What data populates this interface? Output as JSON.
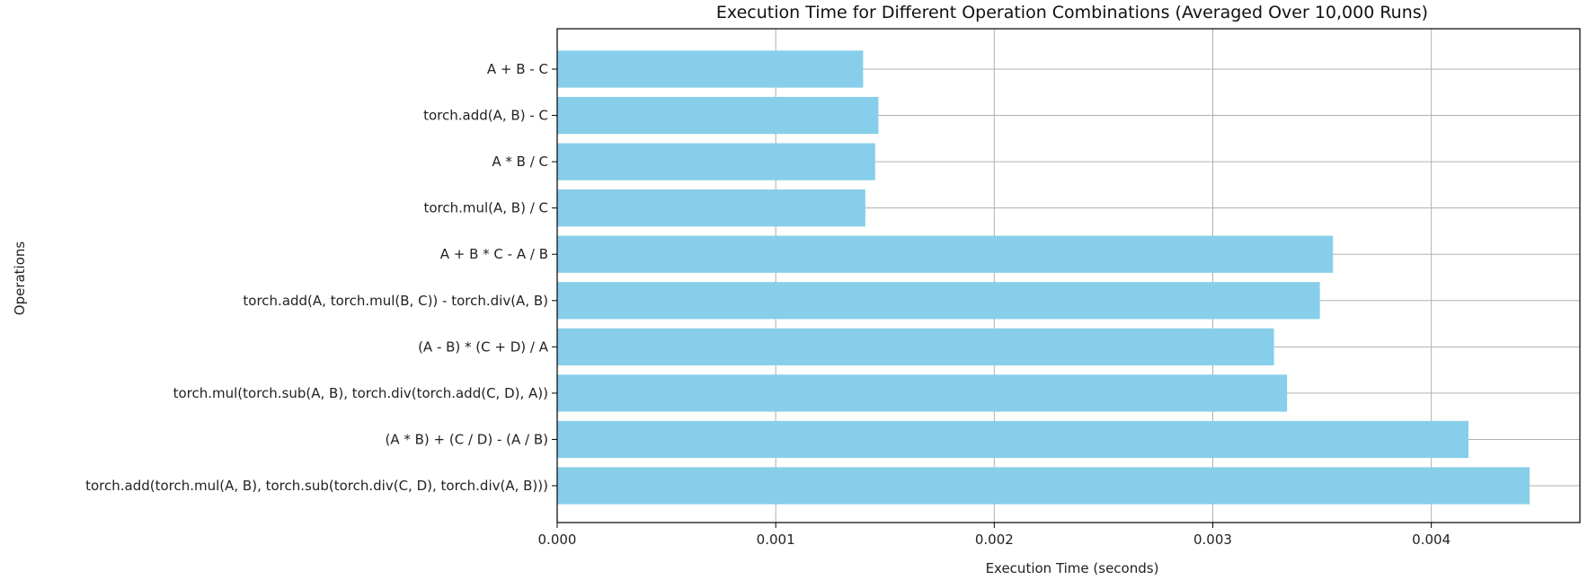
{
  "chart_data": {
    "type": "bar",
    "orientation": "horizontal",
    "title": "Execution Time for Different Operation Combinations (Averaged Over 10,000 Runs)",
    "xlabel": "Execution Time (seconds)",
    "ylabel": "Operations",
    "xlim": [
      0,
      0.00468
    ],
    "xticks": [
      0.0,
      0.001,
      0.002,
      0.003,
      0.004
    ],
    "xtick_labels": [
      "0.000",
      "0.001",
      "0.002",
      "0.003",
      "0.004"
    ],
    "grid": true,
    "bar_color": "#87ceeb",
    "categories": [
      "A + B - C",
      "torch.add(A, B) - C",
      "A * B / C",
      "torch.mul(A, B) / C",
      "A + B * C - A / B",
      "torch.add(A, torch.mul(B, C)) - torch.div(A, B)",
      "(A - B) * (C + D) / A",
      "torch.mul(torch.sub(A, B), torch.div(torch.add(C, D), A))",
      "(A * B) + (C / D) - (A / B)",
      "torch.add(torch.mul(A, B), torch.sub(torch.div(C, D), torch.div(A, B)))"
    ],
    "values": [
      0.0014,
      0.00147,
      0.001455,
      0.00141,
      0.00355,
      0.00349,
      0.00328,
      0.00334,
      0.00417,
      0.00445
    ]
  }
}
